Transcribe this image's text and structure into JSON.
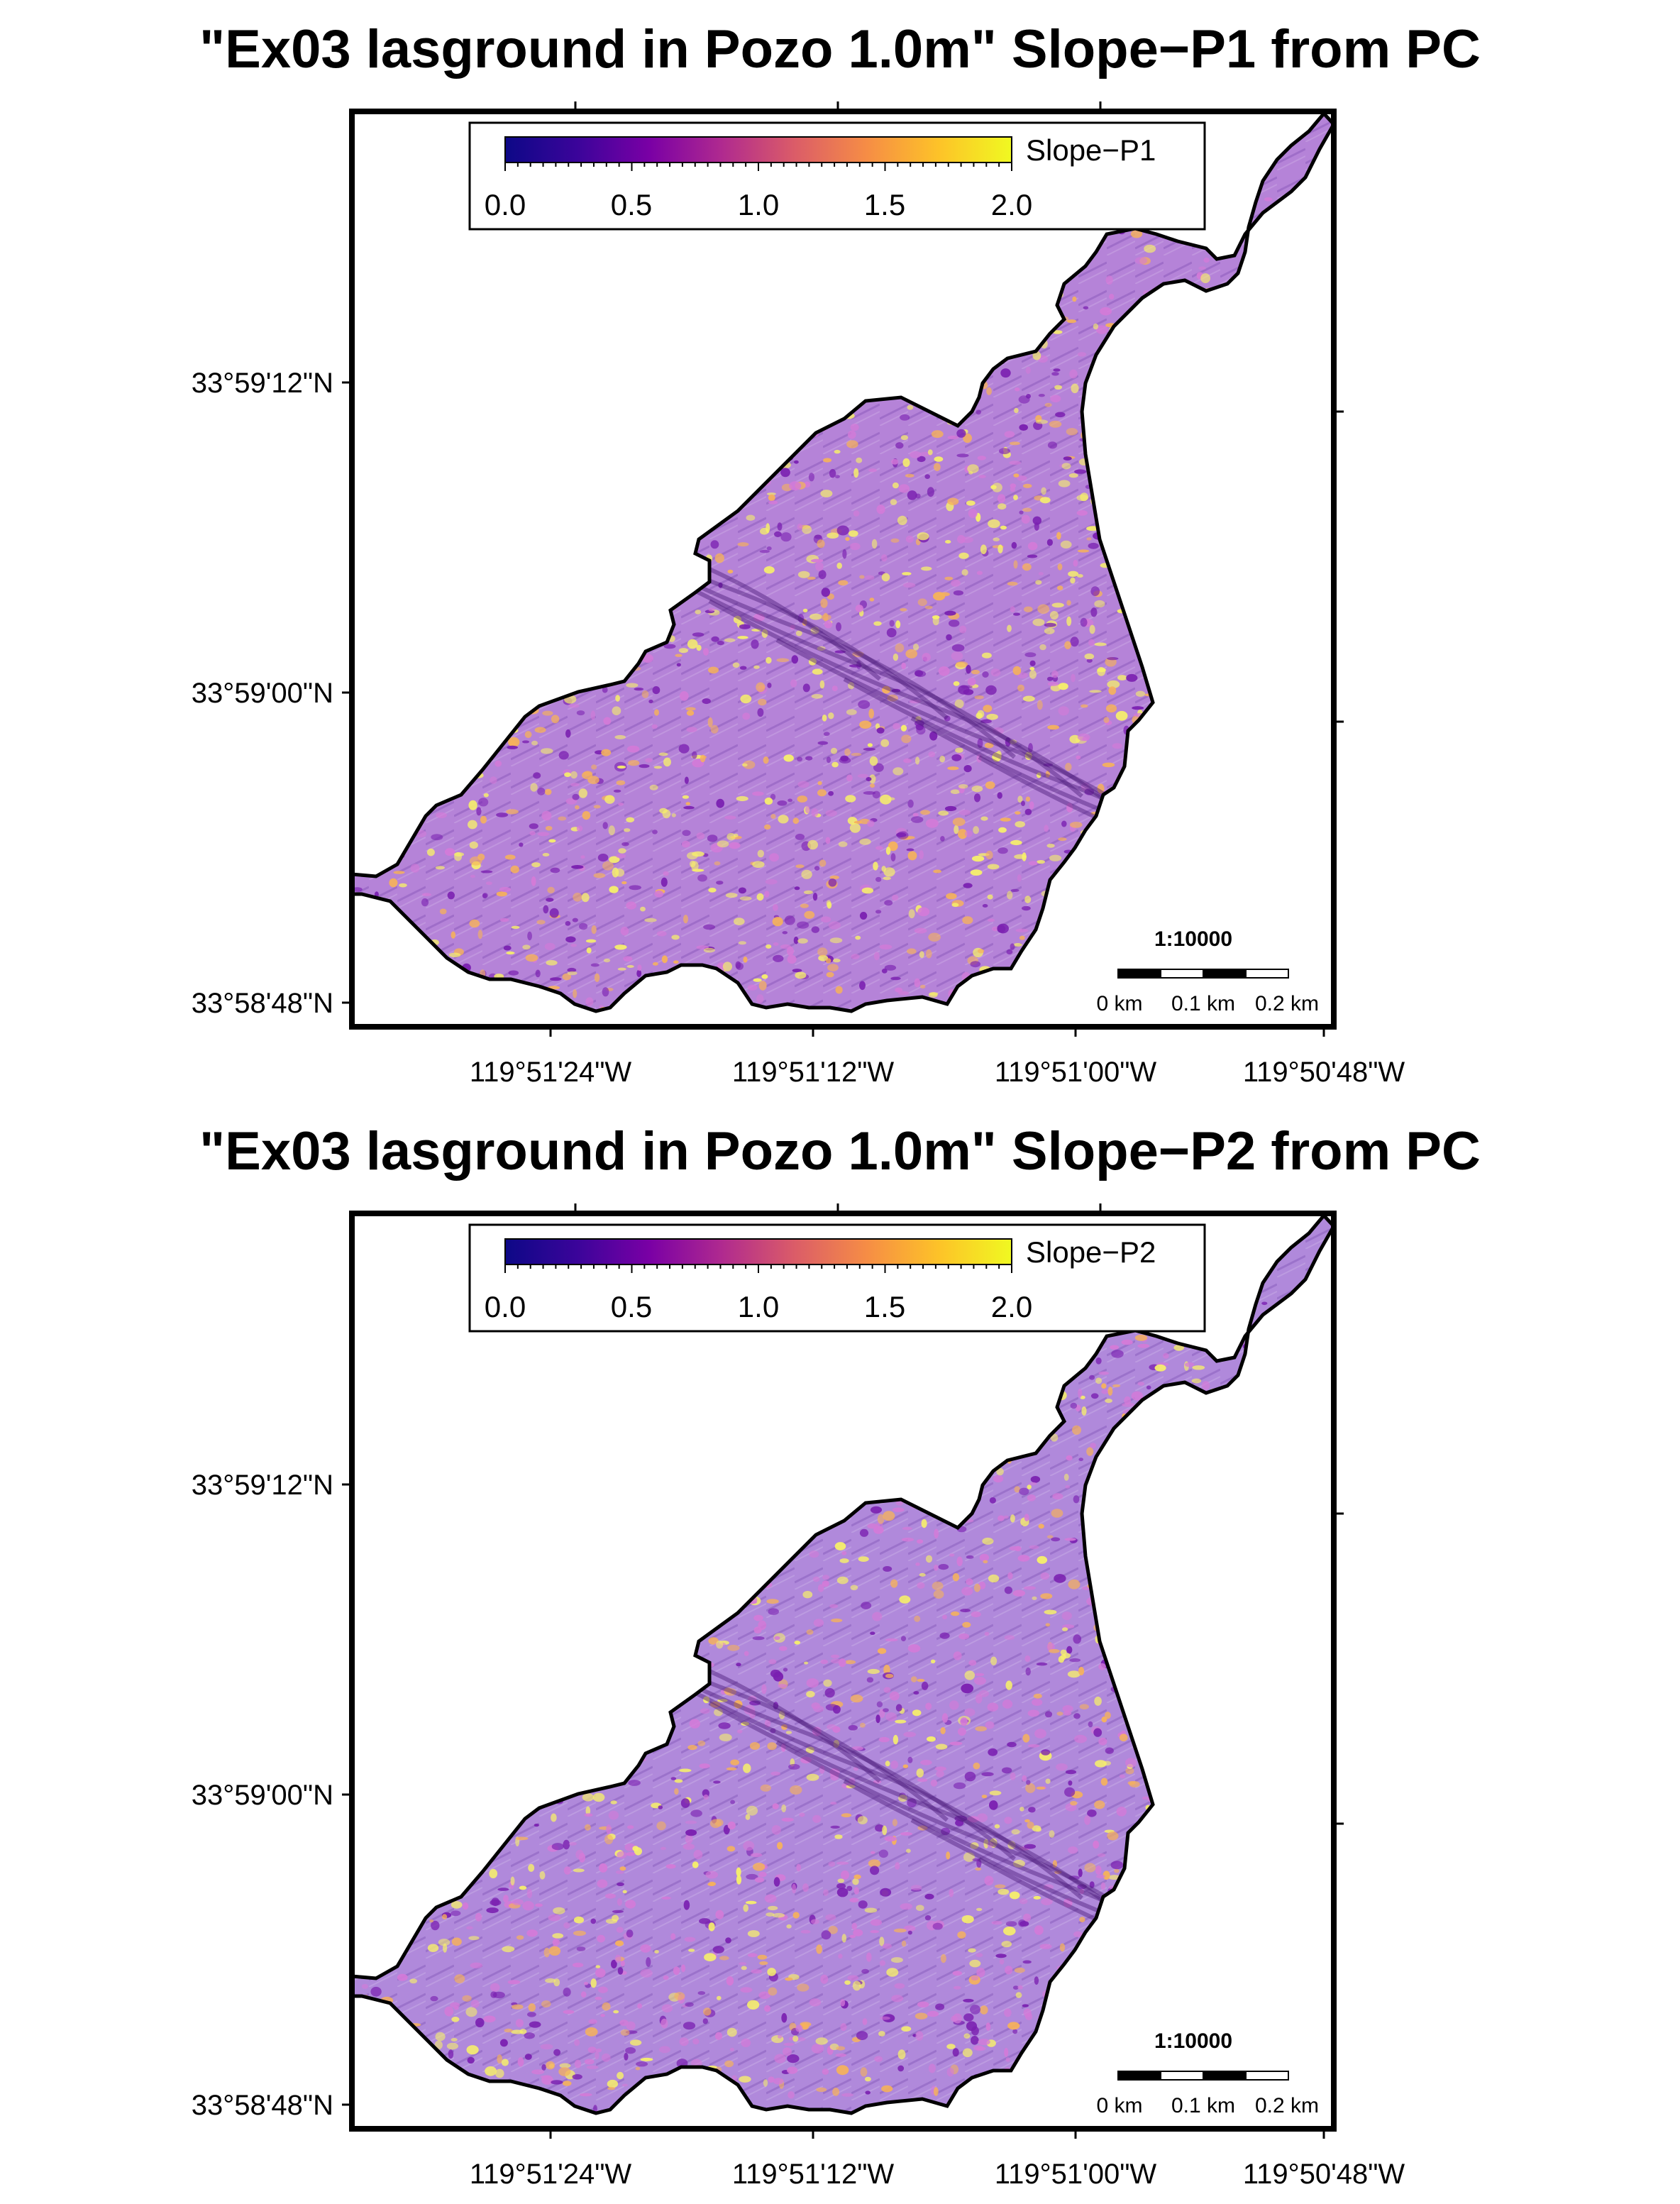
{
  "panels": [
    {
      "title": "\"Ex03 lasground in Pozo 1.0m\" Slope−P1 from PC",
      "colorbar_label": "Slope−P1",
      "colorbar_ticks": [
        "0.0",
        "0.5",
        "1.0",
        "1.5",
        "2.0"
      ],
      "colorbar_range": [
        0.0,
        2.0
      ],
      "colormap": [
        "#0d0887",
        "#3b049a",
        "#7a00a5",
        "#b02a8f",
        "#db5c68",
        "#f68d45",
        "#fdc328",
        "#f0f921"
      ],
      "lat_labels": [
        "33°59'12\"N",
        "33°59'00\"N",
        "33°58'48\"N"
      ],
      "lon_labels": [
        "119°51'24\"W",
        "119°51'12\"W",
        "119°51'00\"W",
        "119°50'48\"W"
      ],
      "scale_title": "1:10000",
      "scale_labels": [
        "0 km",
        "0.1 km",
        "0.2 km"
      ],
      "yellow_density": 0.55
    },
    {
      "title": "\"Ex03 lasground in Pozo 1.0m\" Slope−P2 from PC",
      "colorbar_label": "Slope−P2",
      "colorbar_ticks": [
        "0.0",
        "0.5",
        "1.0",
        "1.5",
        "2.0"
      ],
      "colorbar_range": [
        0.0,
        2.0
      ],
      "colormap": [
        "#0d0887",
        "#3b049a",
        "#7a00a5",
        "#b02a8f",
        "#db5c68",
        "#f68d45",
        "#fdc328",
        "#f0f921"
      ],
      "lat_labels": [
        "33°59'12\"N",
        "33°59'00\"N",
        "33°58'48\"N"
      ],
      "lon_labels": [
        "119°51'24\"W",
        "119°51'12\"W",
        "119°51'00\"W",
        "119°50'48\"W"
      ],
      "scale_title": "1:10000",
      "scale_labels": [
        "0 km",
        "0.1 km",
        "0.2 km"
      ],
      "yellow_density": 0.35
    }
  ]
}
